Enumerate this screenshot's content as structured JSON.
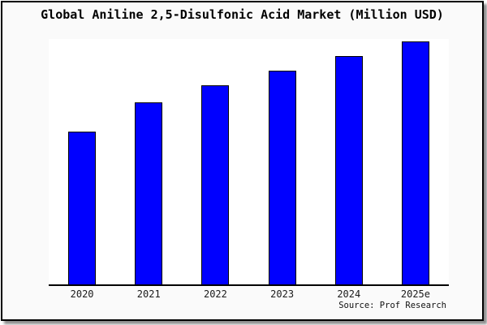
{
  "chart_data": {
    "type": "bar",
    "title": "Global Aniline 2,5-Disulfonic Acid Market (Million USD)",
    "categories": [
      "2020",
      "2021",
      "2022",
      "2023",
      "2024",
      "2025e"
    ],
    "values": [
      63,
      75,
      82,
      88,
      94,
      100
    ],
    "values_estimated": true,
    "ylim": [
      0,
      101
    ],
    "xlabel": "",
    "ylabel": "",
    "grid": false,
    "legend": false,
    "y_axis_ticks_visible": false,
    "source": "Source: Prof Research",
    "colors": {
      "bar_fill": "#0000ff",
      "bar_edge": "#000000",
      "plot_background": "#ffffff",
      "figure_background": "#fafafa",
      "frame_border": "#000000"
    }
  }
}
